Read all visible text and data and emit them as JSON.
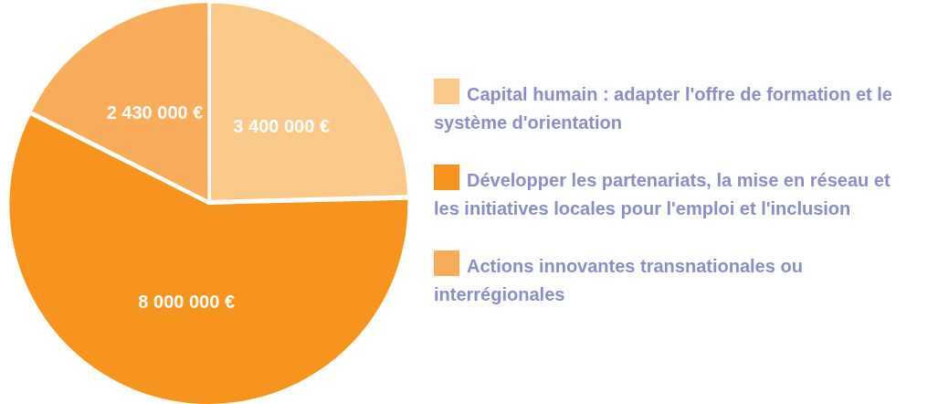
{
  "chart_data": {
    "type": "pie",
    "categories": [
      "Capital humain : adapter l'offre de formation et le système d'orientation",
      "Développer les partenariats, la mise en réseau et les initiatives locales pour l'emploi et l'inclusion",
      "Actions innovantes transnationales ou interrégionales"
    ],
    "values": [
      3400000,
      8000000,
      2430000
    ],
    "colors": [
      "#fbc98a",
      "#f7941d",
      "#f9ad5a"
    ],
    "value_labels": [
      "3 400 000 €",
      "8 000 000 €",
      "2 430 000 €"
    ],
    "legend": "right"
  }
}
